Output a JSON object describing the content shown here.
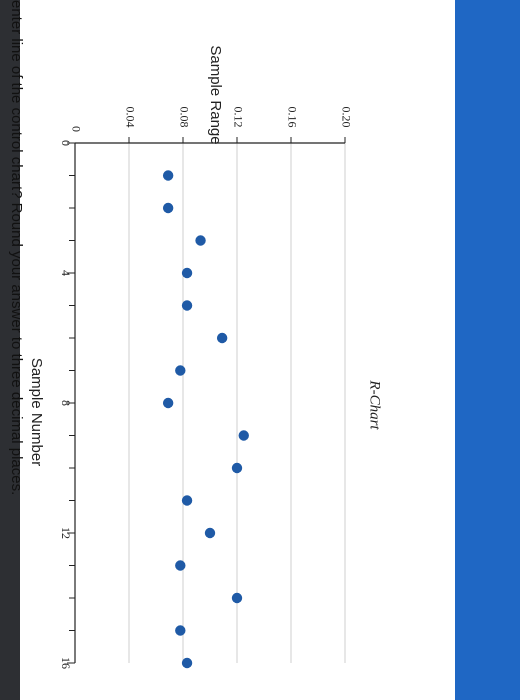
{
  "question": {
    "text": "enter line of the control chart? Round your answer to three decimal places."
  },
  "chart_data": {
    "type": "scatter",
    "title": "R-Chart",
    "xlabel": "Sample Number",
    "ylabel": "Sample Range",
    "xlim": [
      0,
      16
    ],
    "ylim": [
      0,
      0.2
    ],
    "x_ticks": [
      0,
      4,
      8,
      12,
      16
    ],
    "y_ticks": [
      0.04,
      0.08,
      0.12,
      0.16,
      0.2
    ],
    "y_tick_labels": [
      "0.04",
      "0.08",
      "0.12",
      "0.16",
      "0.20"
    ],
    "x_tick_labels": [
      "0",
      "4",
      "8",
      "12",
      "16"
    ],
    "y_zero_label": "0",
    "grid": true,
    "marker_color": "#1f5aa6",
    "x": [
      1,
      2,
      3,
      4,
      5,
      6,
      7,
      8,
      9,
      10,
      11,
      12,
      13,
      14,
      15,
      16
    ],
    "values": [
      0.069,
      0.069,
      0.093,
      0.083,
      0.083,
      0.109,
      0.078,
      0.069,
      0.125,
      0.12,
      0.083,
      0.1,
      0.078,
      0.12,
      0.078,
      0.083
    ]
  }
}
